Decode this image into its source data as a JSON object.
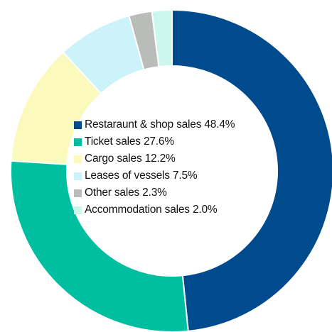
{
  "chart_data": {
    "type": "pie",
    "style": "donut",
    "start_angle_deg": 0,
    "direction": "clockwise",
    "grid": false,
    "legend_position": "center",
    "slices": [
      {
        "label": "Restaraunt & shop sales",
        "value": 48.4,
        "value_label": "48.4%",
        "color": "#004b8d"
      },
      {
        "label": "Ticket sales",
        "value": 27.6,
        "value_label": "27.6%",
        "color": "#00bfa0"
      },
      {
        "label": "Cargo sales",
        "value": 12.2,
        "value_label": "12.2%",
        "color": "#fcf9bd"
      },
      {
        "label": "Leases of vessels",
        "value": 7.5,
        "value_label": "7.5%",
        "color": "#ccf2fa"
      },
      {
        "label": "Other sales",
        "value": 2.3,
        "value_label": "2.3%",
        "color": "#b9bcb9"
      },
      {
        "label": "Accommodation sales",
        "value": 2.0,
        "value_label": "2.0%",
        "color": "#ccf7ef"
      }
    ]
  }
}
